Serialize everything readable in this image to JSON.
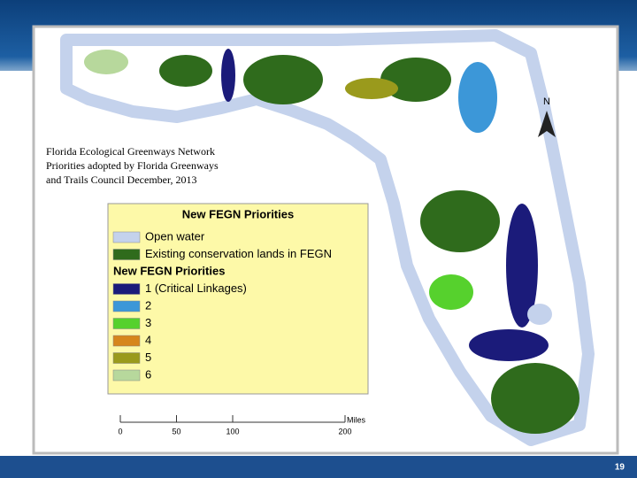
{
  "caption": [
    "Florida Ecological Greenways Network",
    "Priorities adopted by Florida Greenways",
    "and Trails Council December, 2013"
  ],
  "legend": {
    "title": "New FEGN Priorities",
    "items": [
      {
        "label": "Open water",
        "color": "#c4d2ec"
      },
      {
        "label": "Existing conservation lands in FEGN",
        "color": "#2f6b1c"
      }
    ],
    "subtitle": "New FEGN Priorities",
    "priority_items": [
      {
        "label": "1 (Critical Linkages)",
        "color": "#1b1b7a"
      },
      {
        "label": "2",
        "color": "#3c97d8"
      },
      {
        "label": "3",
        "color": "#56d12d"
      },
      {
        "label": "4",
        "color": "#d6861c"
      },
      {
        "label": "5",
        "color": "#9a9a1c"
      },
      {
        "label": "6",
        "color": "#b7d89c"
      }
    ]
  },
  "scale": {
    "ticks": [
      0,
      50,
      100,
      200
    ],
    "unit": "Miles"
  },
  "north": "N",
  "slide_number": "19"
}
